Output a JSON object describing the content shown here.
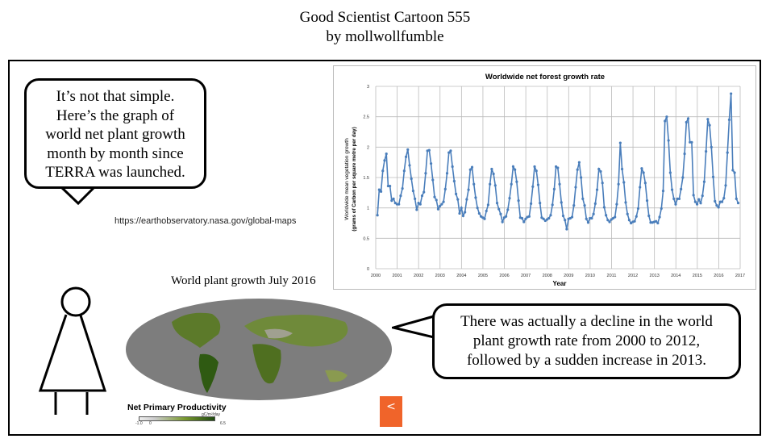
{
  "title": {
    "line1": "Good Scientist Cartoon 555",
    "line2": "by mollwollfumble"
  },
  "bubble_left": [
    "It’s not that simple.",
    "Here’s the graph of",
    "world net plant growth",
    "month by month since",
    "TERRA was launched."
  ],
  "source_url": "https://earthobservatory.nasa.gov/global-maps",
  "bubble_right": [
    "There was actually a decline in the world",
    "plant growth rate from 2000 to 2012,",
    "followed by a sudden increase in 2013."
  ],
  "map": {
    "title": "World plant growth July 2016",
    "legend_title": "Net Primary Productivity",
    "legend_unit": "gC/m²/day",
    "legend_ticks": [
      "-1.0",
      "0",
      "6.5"
    ],
    "share_icon": "share-icon"
  },
  "colors": {
    "series": "#4a7ebb",
    "share": "#f0642a"
  },
  "chart_data": {
    "type": "line",
    "title": "Worldwide net forest growth rate",
    "xlabel": "Year",
    "ylabel": [
      "Worldwide mean vegetation growth",
      "(grams of Carbon per square metre per day)"
    ],
    "xlim": [
      2000,
      2017
    ],
    "ylim": [
      0,
      3
    ],
    "xticks": [
      "2000",
      "2001",
      "2002",
      "2003",
      "2004",
      "2005",
      "2006",
      "2007",
      "2008",
      "2009",
      "2010",
      "2011",
      "2012",
      "2013",
      "2014",
      "2015",
      "2016",
      "2017"
    ],
    "yticks": [
      "0",
      "0.5",
      "1",
      "1.5",
      "2",
      "2.5",
      "3"
    ],
    "grid": true,
    "series": [
      {
        "name": "monthly",
        "start": 2000.08,
        "step_years": 0.0833,
        "values": [
          0.88,
          1.3,
          1.27,
          1.61,
          1.78,
          1.89,
          1.36,
          1.36,
          1.12,
          1.15,
          1.08,
          1.06,
          1.06,
          1.2,
          1.32,
          1.61,
          1.84,
          1.96,
          1.7,
          1.48,
          1.28,
          1.15,
          0.97,
          1.08,
          1.06,
          1.2,
          1.26,
          1.57,
          1.94,
          1.95,
          1.73,
          1.46,
          1.18,
          1.13,
          0.98,
          1.03,
          1.06,
          1.1,
          1.31,
          1.57,
          1.91,
          1.94,
          1.68,
          1.44,
          1.23,
          1.14,
          0.91,
          1.0,
          0.87,
          0.93,
          1.14,
          1.3,
          1.63,
          1.67,
          1.39,
          1.17,
          1.0,
          0.91,
          0.86,
          0.84,
          0.82,
          0.95,
          1.05,
          1.39,
          1.64,
          1.56,
          1.37,
          1.08,
          0.98,
          0.9,
          0.77,
          0.84,
          0.86,
          0.97,
          1.16,
          1.39,
          1.68,
          1.63,
          1.43,
          1.12,
          0.84,
          0.83,
          0.77,
          0.82,
          0.85,
          0.86,
          1.07,
          1.35,
          1.68,
          1.61,
          1.38,
          1.08,
          0.84,
          0.82,
          0.79,
          0.81,
          0.83,
          0.88,
          1.05,
          1.31,
          1.68,
          1.66,
          1.39,
          1.09,
          0.87,
          0.8,
          0.65,
          0.82,
          0.83,
          0.85,
          1.04,
          1.34,
          1.63,
          1.75,
          1.5,
          1.15,
          1.04,
          0.82,
          0.76,
          0.83,
          0.83,
          0.9,
          1.07,
          1.3,
          1.64,
          1.6,
          1.41,
          1.01,
          0.88,
          0.8,
          0.77,
          0.81,
          0.83,
          0.85,
          1.06,
          1.39,
          2.07,
          1.64,
          1.42,
          1.09,
          0.9,
          0.8,
          0.75,
          0.77,
          0.78,
          0.86,
          0.99,
          1.34,
          1.65,
          1.58,
          1.41,
          1.12,
          0.87,
          0.76,
          0.76,
          0.77,
          0.78,
          0.75,
          0.85,
          0.99,
          1.28,
          2.43,
          2.5,
          2.11,
          1.58,
          1.3,
          1.15,
          1.06,
          1.15,
          1.15,
          1.31,
          1.5,
          1.89,
          2.41,
          2.47,
          2.08,
          2.08,
          1.21,
          1.1,
          1.06,
          1.14,
          1.08,
          1.2,
          1.43,
          1.93,
          2.46,
          2.36,
          2.0,
          1.51,
          1.11,
          1.04,
          1.01,
          1.1,
          1.1,
          1.16,
          1.37,
          1.91,
          2.45,
          2.88,
          1.62,
          1.58,
          1.15,
          1.08
        ]
      }
    ]
  }
}
